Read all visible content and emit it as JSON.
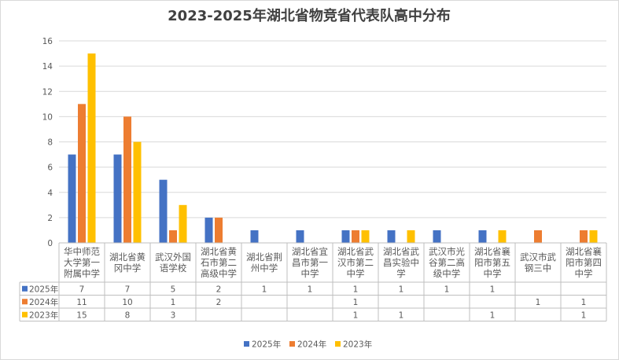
{
  "chart_data": {
    "type": "bar",
    "title": "2023-2025年湖北省物竞省代表队高中分布",
    "ylim": [
      0,
      16
    ],
    "yticks": [
      0,
      2,
      4,
      6,
      8,
      10,
      12,
      14,
      16
    ],
    "grid": true,
    "legend_position": "bottom",
    "categories": [
      [
        "华中师范",
        "大学第一",
        "附属中学"
      ],
      [
        "湖北省黄",
        "冈中学"
      ],
      [
        "武汉外国",
        "语学校"
      ],
      [
        "湖北省黄",
        "石市第二",
        "高级中学"
      ],
      [
        "湖北省荆",
        "州中学"
      ],
      [
        "湖北省宜",
        "昌市第一",
        "中学"
      ],
      [
        "湖北省武",
        "汉市第二",
        "中学"
      ],
      [
        "湖北省武",
        "昌实验中",
        "学"
      ],
      [
        "武汉市光",
        "谷第二高",
        "级中学"
      ],
      [
        "湖北省襄",
        "阳市第五",
        "中学"
      ],
      [
        "武汉市武",
        "钢三中"
      ],
      [
        "湖北省襄",
        "阳市第四",
        "中学"
      ]
    ],
    "series": [
      {
        "name": "2025年",
        "color": "#4472C4",
        "values": [
          7,
          7,
          5,
          2,
          1,
          1,
          1,
          1,
          1,
          1,
          null,
          null
        ]
      },
      {
        "name": "2024年",
        "color": "#ED7D31",
        "values": [
          11,
          10,
          1,
          2,
          null,
          null,
          1,
          null,
          null,
          null,
          1,
          1
        ]
      },
      {
        "name": "2023年",
        "color": "#FFC000",
        "values": [
          15,
          8,
          3,
          null,
          null,
          null,
          1,
          1,
          null,
          1,
          null,
          1
        ]
      }
    ]
  }
}
